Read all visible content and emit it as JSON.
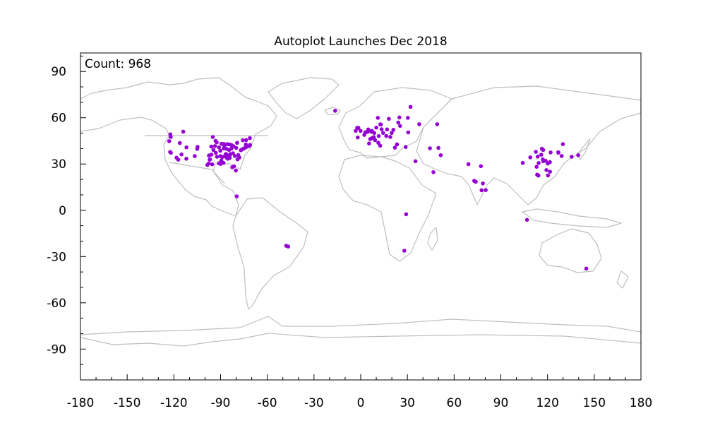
{
  "chart_data": {
    "type": "scatter",
    "title": "Autoplot Launches Dec 2018",
    "annotation": "Count: 968",
    "xlabel": "",
    "ylabel": "",
    "xlim": [
      -180,
      180
    ],
    "ylim": [
      -110,
      102
    ],
    "x_ticks": [
      -180,
      -150,
      -120,
      -90,
      -60,
      -30,
      0,
      30,
      60,
      90,
      120,
      150,
      180
    ],
    "y_ticks": [
      -90,
      -60,
      -30,
      0,
      30,
      60,
      90
    ],
    "grid": false,
    "background_layer": "world coastlines and borders (gray)",
    "colors": {
      "points": "#9400d3",
      "coastlines": "#bfbfbf",
      "frame": "#000000"
    },
    "series": [
      {
        "points": [
          [
            -122.3,
            49.2
          ],
          [
            -122.0,
            47.5
          ],
          [
            -123.0,
            44.8
          ],
          [
            -122.4,
            37.8
          ],
          [
            -121.9,
            37.3
          ],
          [
            -118.3,
            34.1
          ],
          [
            -117.2,
            32.8
          ],
          [
            -115.1,
            36.2
          ],
          [
            -116.2,
            43.6
          ],
          [
            -111.9,
            40.8
          ],
          [
            -114.0,
            51.0
          ],
          [
            -112.0,
            33.4
          ],
          [
            -105.0,
            39.8
          ],
          [
            -106.6,
            35.1
          ],
          [
            -104.8,
            41.1
          ],
          [
            -97.5,
            35.5
          ],
          [
            -97.7,
            30.3
          ],
          [
            -97.0,
            32.8
          ],
          [
            -98.5,
            29.4
          ],
          [
            -96.8,
            33.0
          ],
          [
            -95.4,
            29.8
          ],
          [
            -94.6,
            39.1
          ],
          [
            -93.2,
            45.0
          ],
          [
            -96.0,
            41.3
          ],
          [
            -93.6,
            41.6
          ],
          [
            -92.5,
            44.0
          ],
          [
            -90.2,
            38.6
          ],
          [
            -89.4,
            43.1
          ],
          [
            -87.9,
            43.0
          ],
          [
            -87.6,
            41.9
          ],
          [
            -88.0,
            40.1
          ],
          [
            -86.2,
            39.8
          ],
          [
            -85.7,
            42.9
          ],
          [
            -84.4,
            42.7
          ],
          [
            -83.0,
            42.3
          ],
          [
            -84.5,
            39.1
          ],
          [
            -83.0,
            40.0
          ],
          [
            -81.7,
            41.5
          ],
          [
            -80.0,
            40.4
          ],
          [
            -86.8,
            36.2
          ],
          [
            -86.6,
            34.7
          ],
          [
            -84.4,
            33.8
          ],
          [
            -90.0,
            35.1
          ],
          [
            -91.1,
            30.5
          ],
          [
            -90.1,
            30.0
          ],
          [
            -88.1,
            30.7
          ],
          [
            -82.5,
            27.9
          ],
          [
            -80.2,
            25.8
          ],
          [
            -81.4,
            28.5
          ],
          [
            -78.6,
            35.8
          ],
          [
            -80.8,
            35.2
          ],
          [
            -77.0,
            38.9
          ],
          [
            -76.6,
            39.3
          ],
          [
            -75.2,
            40.0
          ],
          [
            -74.0,
            40.7
          ],
          [
            -73.8,
            42.7
          ],
          [
            -71.1,
            42.4
          ],
          [
            -72.9,
            41.3
          ],
          [
            -71.4,
            41.8
          ],
          [
            -79.4,
            43.7
          ],
          [
            -75.7,
            45.4
          ],
          [
            -73.6,
            45.5
          ],
          [
            -71.2,
            46.8
          ],
          [
            -84.0,
            35.9
          ],
          [
            -85.3,
            35.0
          ],
          [
            -82.0,
            37.0
          ],
          [
            -86.0,
            34.0
          ],
          [
            -87.0,
            35.5
          ],
          [
            -86.5,
            36.5
          ],
          [
            -88.9,
            34.5
          ],
          [
            -89.5,
            32.3
          ],
          [
            -92.3,
            34.7
          ],
          [
            -93.1,
            37.2
          ],
          [
            -91.0,
            40.8
          ],
          [
            -95.9,
            36.1
          ],
          [
            -79.1,
            33.0
          ],
          [
            -78.0,
            34.2
          ],
          [
            -95.0,
            47.5
          ],
          [
            -90.7,
            30.4
          ],
          [
            -85.4,
            33.4
          ],
          [
            -84.1,
            34.0
          ],
          [
            -83.8,
            36.4
          ],
          [
            -79.6,
            9.0
          ],
          [
            -46.6,
            -23.5
          ],
          [
            -47.9,
            -23.0
          ],
          [
            -16.4,
            64.5
          ],
          [
            -3.2,
            51.5
          ],
          [
            -0.1,
            51.5
          ],
          [
            -1.5,
            53.4
          ],
          [
            -2.2,
            53.5
          ],
          [
            2.3,
            48.9
          ],
          [
            4.9,
            52.4
          ],
          [
            4.4,
            50.8
          ],
          [
            6.1,
            46.2
          ],
          [
            7.4,
            46.9
          ],
          [
            8.5,
            47.4
          ],
          [
            9.2,
            45.5
          ],
          [
            11.3,
            43.8
          ],
          [
            12.5,
            41.9
          ],
          [
            11.6,
            48.1
          ],
          [
            8.7,
            50.1
          ],
          [
            13.4,
            52.5
          ],
          [
            10.0,
            53.6
          ],
          [
            12.6,
            55.7
          ],
          [
            6.8,
            51.2
          ],
          [
            7.2,
            51.5
          ],
          [
            6.9,
            50.9
          ],
          [
            18.1,
            59.3
          ],
          [
            11.0,
            59.9
          ],
          [
            24.9,
            60.2
          ],
          [
            30.3,
            59.9
          ],
          [
            37.6,
            55.8
          ],
          [
            30.5,
            50.5
          ],
          [
            21.0,
            52.2
          ],
          [
            19.9,
            50.1
          ],
          [
            14.4,
            50.1
          ],
          [
            16.4,
            48.2
          ],
          [
            19.0,
            47.5
          ],
          [
            23.3,
            42.7
          ],
          [
            28.9,
            41.0
          ],
          [
            35.2,
            31.8
          ],
          [
            44.5,
            40.2
          ],
          [
            49.9,
            40.4
          ],
          [
            51.4,
            35.7
          ],
          [
            46.7,
            24.7
          ],
          [
            32.0,
            67.0
          ],
          [
            24.1,
            56.9
          ],
          [
            25.3,
            54.7
          ],
          [
            49.1,
            55.8
          ],
          [
            22.0,
            40.6
          ],
          [
            3.0,
            50.6
          ],
          [
            -1.9,
            47.2
          ],
          [
            5.4,
            43.3
          ],
          [
            16.9,
            52.4
          ],
          [
            13.0,
            55.6
          ],
          [
            72.9,
            19.1
          ],
          [
            77.2,
            28.6
          ],
          [
            77.6,
            13.0
          ],
          [
            80.3,
            13.1
          ],
          [
            73.9,
            18.5
          ],
          [
            78.5,
            17.4
          ],
          [
            69.2,
            29.9
          ],
          [
            106.8,
            -6.2
          ],
          [
            113.3,
            23.1
          ],
          [
            114.1,
            22.5
          ],
          [
            116.4,
            39.9
          ],
          [
            117.2,
            39.1
          ],
          [
            121.5,
            31.2
          ],
          [
            120.2,
            30.3
          ],
          [
            118.8,
            32.1
          ],
          [
            114.3,
            30.6
          ],
          [
            113.0,
            28.2
          ],
          [
            113.7,
            34.8
          ],
          [
            108.9,
            34.3
          ],
          [
            104.1,
            30.7
          ],
          [
            117.3,
            31.8
          ],
          [
            112.5,
            37.9
          ],
          [
            126.9,
            37.6
          ],
          [
            127.0,
            37.3
          ],
          [
            129.1,
            35.2
          ],
          [
            139.7,
            35.7
          ],
          [
            135.5,
            34.7
          ],
          [
            129.9,
            42.9
          ],
          [
            121.6,
            25.0
          ],
          [
            120.3,
            22.6
          ],
          [
            119.3,
            26.1
          ],
          [
            144.9,
            -37.8
          ],
          [
            28.0,
            -26.2
          ],
          [
            29.2,
            -2.6
          ],
          [
            122.0,
            37.5
          ],
          [
            116.0,
            36.0
          ],
          [
            117.0,
            33.0
          ]
        ]
      }
    ]
  }
}
